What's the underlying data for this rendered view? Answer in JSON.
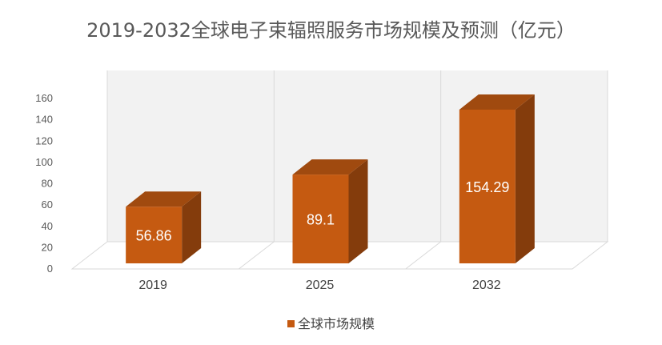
{
  "chart_data": {
    "type": "bar",
    "title": "2019-2032全球电子束辐照服务市场规模及预测（亿元）",
    "categories": [
      "2019",
      "2025",
      "2032"
    ],
    "series": [
      {
        "name": "全球市场规模",
        "values": [
          56.86,
          89.1,
          154.29
        ],
        "color": "#C55A11"
      }
    ],
    "data_labels": [
      "56.86",
      "89.1",
      "154.29"
    ],
    "ylim": [
      0,
      160
    ],
    "yticks": [
      "0",
      "20",
      "40",
      "60",
      "80",
      "100",
      "120",
      "140",
      "160"
    ],
    "grid": true,
    "legend_position": "bottom",
    "three_d": true
  }
}
